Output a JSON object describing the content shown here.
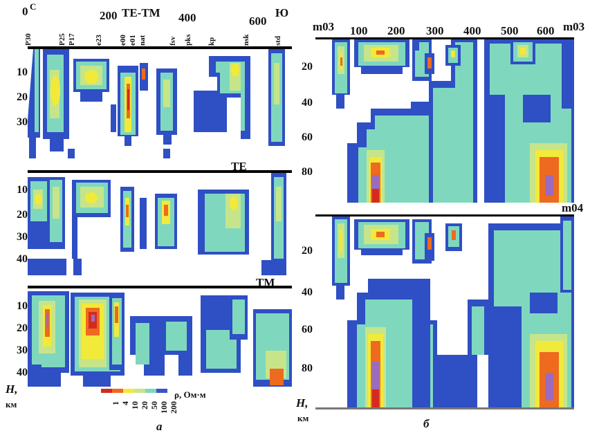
{
  "left_top_axis": {
    "ticks": [
      "0",
      "200",
      "400",
      "600"
    ],
    "corner_left": "С",
    "corner_right": "Ю",
    "profile_label": "TE-TM"
  },
  "station_labels": [
    "P30",
    "P25",
    "P17",
    "e23",
    "e00",
    "e01",
    "nat",
    "fsv",
    "pks",
    "kp",
    "nsk",
    "std"
  ],
  "left_panels": [
    {
      "label": "",
      "yticks": [
        "10",
        "20",
        "30"
      ]
    },
    {
      "label": "TE",
      "yticks": [
        "10",
        "20",
        "30",
        "40"
      ]
    },
    {
      "label": "TM",
      "yticks": [
        "10",
        "20",
        "30",
        "40"
      ]
    }
  ],
  "left_axis": {
    "h_label": "H,",
    "unit": "км"
  },
  "legend": {
    "values": [
      "1",
      "4",
      "10",
      "20",
      "50",
      "100",
      "200"
    ],
    "title": "ρ, Ом·м",
    "colors": [
      "#d42a1f",
      "#ee6a1f",
      "#f2ea3a",
      "#c6e58a",
      "#7fd8be",
      "#3a55c8",
      "#ffffff"
    ]
  },
  "left_caption": "а",
  "right_panels": [
    {
      "label_left": "m03",
      "label_right": "m03",
      "xticks": [
        "100",
        "200",
        "300",
        "400",
        "500",
        "600"
      ],
      "yticks": [
        "20",
        "40",
        "60",
        "80"
      ]
    },
    {
      "label_right": "m04",
      "yticks": [
        "20",
        "40",
        "60",
        "80"
      ]
    }
  ],
  "right_axis": {
    "h_label": "H,",
    "unit": "км"
  },
  "right_caption": "б",
  "colors": {
    "blue": "#2f4fc4",
    "teal": "#7fd8be",
    "green": "#c6e58a",
    "yellow": "#f2ea3a",
    "orange": "#ee6a1f",
    "red": "#d42a1f",
    "purple": "#9a6bc0"
  }
}
